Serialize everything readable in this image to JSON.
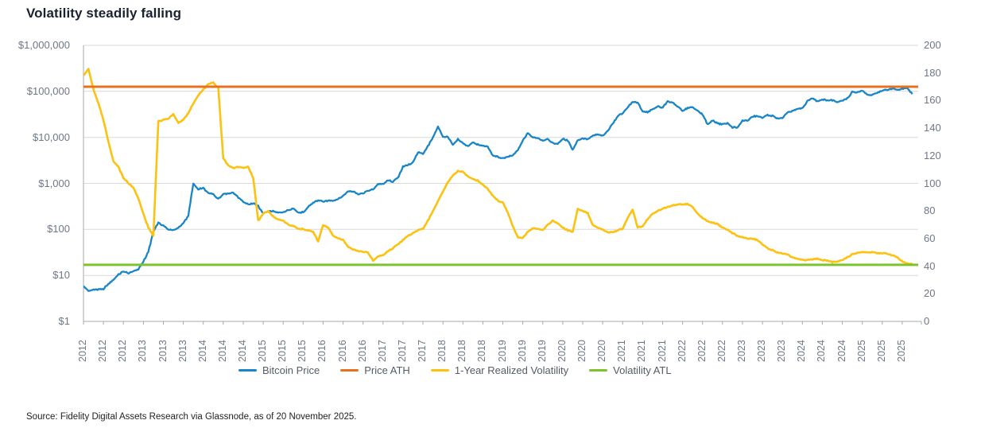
{
  "title": "Volatility steadily falling",
  "source": "Source: Fidelity Digital Assets Research via Glassnode, as of 20 November 2025.",
  "colors": {
    "bitcoin_price": "#1785c8",
    "price_ath": "#e8701e",
    "realized_volatility": "#fdc110",
    "volatility_atl": "#7dc32d",
    "gridline": "#d9d9d9",
    "axis_line": "#a7a9ac",
    "tick_text": "#6e7787",
    "title_text": "#1b212e"
  },
  "chart_data": {
    "type": "line",
    "title": "Volatility steadily falling",
    "x_start": "2012-01",
    "x_end": "2025-11",
    "x_interval": "monthly",
    "grid": true,
    "legend_position": "bottom",
    "left_axis": {
      "scale": "log",
      "range": [
        1,
        1000000
      ],
      "ticks": [
        {
          "label": "$1,000,000",
          "value": 1000000
        },
        {
          "label": "$100,000",
          "value": 100000
        },
        {
          "label": "$10,000",
          "value": 10000
        },
        {
          "label": "$1,000",
          "value": 1000
        },
        {
          "label": "$100",
          "value": 100
        },
        {
          "label": "$10",
          "value": 10
        },
        {
          "label": "$1",
          "value": 1
        }
      ]
    },
    "right_axis": {
      "scale": "linear",
      "range": [
        0,
        200
      ],
      "ticks": [
        200,
        180,
        160,
        140,
        120,
        100,
        80,
        60,
        40,
        20,
        0
      ]
    },
    "x_tick_labels": [
      "2012",
      "2012",
      "2012",
      "2013",
      "2013",
      "2013",
      "2014",
      "2014",
      "2014",
      "2015",
      "2015",
      "2015",
      "2016",
      "2016",
      "2016",
      "2017",
      "2017",
      "2017",
      "2018",
      "2018",
      "2018",
      "2019",
      "2019",
      "2019",
      "2020",
      "2020",
      "2020",
      "2021",
      "2021",
      "2021",
      "2022",
      "2022",
      "2022",
      "2023",
      "2023",
      "2023",
      "2024",
      "2024",
      "2024",
      "2025",
      "2025",
      "2025"
    ],
    "series": [
      {
        "name": "Bitcoin Price",
        "axis": "left",
        "color": "#1785c8",
        "values": [
          5.8,
          4.6,
          4.9,
          5.0,
          5.1,
          6.5,
          8.0,
          10.5,
          12.3,
          11.0,
          12.5,
          13.5,
          20,
          33,
          90,
          140,
          120,
          100,
          95,
          110,
          135,
          200,
          1000,
          750,
          800,
          620,
          580,
          450,
          580,
          600,
          620,
          500,
          390,
          350,
          370,
          320,
          220,
          250,
          250,
          235,
          235,
          260,
          280,
          230,
          237,
          310,
          380,
          430,
          410,
          420,
          415,
          450,
          530,
          670,
          660,
          580,
          610,
          700,
          740,
          960,
          970,
          1180,
          1080,
          1350,
          2300,
          2500,
          2870,
          4700,
          4340,
          6450,
          10000,
          17000,
          10200,
          10300,
          7000,
          9200,
          7500,
          6400,
          7700,
          7000,
          6600,
          6300,
          4000,
          3800,
          3450,
          3850,
          4100,
          5300,
          8600,
          12500,
          10000,
          9600,
          8300,
          9200,
          7500,
          7200,
          9300,
          8600,
          5300,
          8600,
          9500,
          9100,
          11000,
          11700,
          10800,
          13800,
          19700,
          29000,
          33000,
          45000,
          59000,
          57000,
          37000,
          35000,
          41000,
          47000,
          43800,
          61300,
          57000,
          46200,
          38500,
          43200,
          45500,
          37700,
          31800,
          19000,
          23300,
          20000,
          19400,
          20500,
          16500,
          16500,
          23100,
          23100,
          28500,
          29200,
          27200,
          30500,
          29200,
          26000,
          27000,
          34600,
          37700,
          42200,
          42600,
          61200,
          71300,
          60600,
          67500,
          62700,
          64600,
          59000,
          63300,
          70200,
          96400,
          93400,
          102000,
          84400,
          82500,
          94200,
          104600,
          107100,
          115800,
          108200,
          114000,
          121000,
          87000
        ]
      },
      {
        "name": "Price ATH",
        "axis": "left",
        "color": "#e8701e",
        "constant": 126000
      },
      {
        "name": "1-Year Realized Volatility",
        "axis": "right",
        "color": "#fdc110",
        "values": [
          178,
          183,
          168,
          158,
          146,
          130,
          116,
          112,
          104,
          100,
          97,
          89,
          78,
          68,
          62,
          145,
          146,
          147,
          150,
          144,
          146,
          151,
          158,
          164,
          168,
          172,
          173,
          169,
          118,
          113,
          111,
          112,
          111,
          112,
          104,
          73,
          78,
          80,
          76,
          74,
          73,
          70,
          69,
          67,
          67,
          66,
          65,
          58,
          70,
          68,
          62,
          60,
          59,
          54,
          52,
          51,
          50.5,
          50,
          44,
          47,
          48,
          51,
          53,
          56,
          59,
          62,
          64,
          66,
          67,
          73,
          80,
          87,
          94,
          101,
          106,
          109,
          108.5,
          105,
          103,
          102,
          99,
          96,
          91,
          87.5,
          86,
          79,
          69,
          61,
          60.5,
          65,
          67.5,
          67,
          66,
          70,
          73,
          71,
          68,
          66,
          64.8,
          81.5,
          80,
          78.5,
          70,
          68,
          66.5,
          64.6,
          64.6,
          66,
          67,
          75,
          81,
          68,
          69,
          74,
          78,
          80,
          81.5,
          83,
          84,
          84.5,
          85,
          85,
          83,
          78,
          75,
          72.5,
          71.5,
          70.5,
          68,
          66.5,
          64,
          62,
          61,
          60,
          60,
          59,
          56,
          53,
          51.5,
          50,
          49.5,
          48.5,
          46.5,
          45.5,
          44.5,
          44.5,
          45,
          45.5,
          44.5,
          44,
          43,
          43.5,
          44.5,
          46.5,
          48.5,
          49.5,
          50,
          50,
          50,
          49.5,
          49.5,
          49,
          48,
          46.5,
          43.5,
          42,
          41.5
        ]
      },
      {
        "name": "Volatility ATL",
        "axis": "right",
        "color": "#7dc32d",
        "constant": 41
      }
    ]
  }
}
